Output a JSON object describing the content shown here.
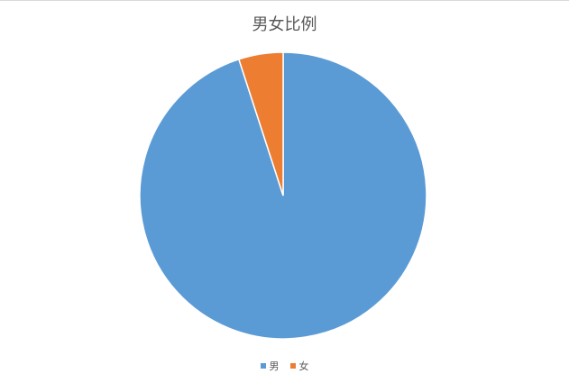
{
  "chart_data": {
    "type": "pie",
    "title": "男女比例",
    "categories": [
      "男",
      "女"
    ],
    "values": [
      95,
      5
    ],
    "colors": [
      "#5b9bd5",
      "#ed7d31"
    ],
    "legend": "bottom"
  }
}
